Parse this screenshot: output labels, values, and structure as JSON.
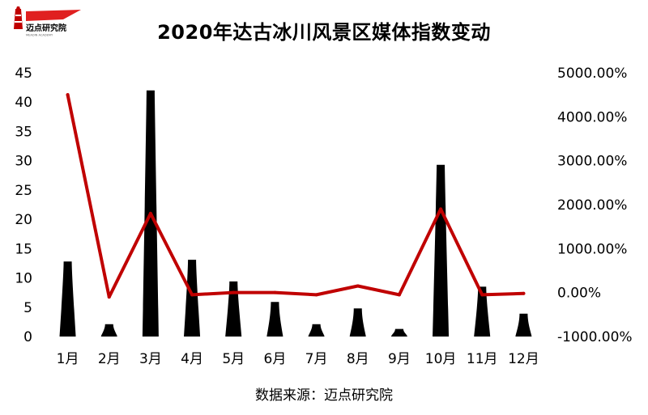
{
  "brand": {
    "name": "迈点研究院",
    "tagline": "MEADIN ACADEMY"
  },
  "chart_data": {
    "type": "bar",
    "title": "2020年达古冰川风景区媒体指数变动",
    "categories": [
      "1月",
      "2月",
      "3月",
      "4月",
      "5月",
      "6月",
      "7月",
      "8月",
      "9月",
      "10月",
      "11月",
      "12月"
    ],
    "series": [
      {
        "type": "bar",
        "axis": "left",
        "values": [
          12.8,
          2.1,
          42,
          13.1,
          9.4,
          5.9,
          2.1,
          4.8,
          1.3,
          29.3,
          8.5,
          3.9
        ]
      },
      {
        "type": "line",
        "axis": "right",
        "values": [
          4500,
          -100,
          1800,
          -50,
          0,
          0,
          -50,
          150,
          -50,
          1900,
          -50,
          -20
        ]
      }
    ],
    "ylim": [
      0,
      45
    ],
    "ytick_labels": [
      "0",
      "5",
      "10",
      "15",
      "20",
      "25",
      "30",
      "35",
      "40",
      "45"
    ],
    "y2lim": [
      -1000,
      5000
    ],
    "y2tick_labels": [
      "-1000.00%",
      "0.00%",
      "1000.00%",
      "2000.00%",
      "3000.00%",
      "4000.00%",
      "5000.00%"
    ],
    "grid": false,
    "colors": {
      "bar": "#000000",
      "line": "#c00000"
    }
  },
  "source_text": "数据来源：迈点研究院"
}
